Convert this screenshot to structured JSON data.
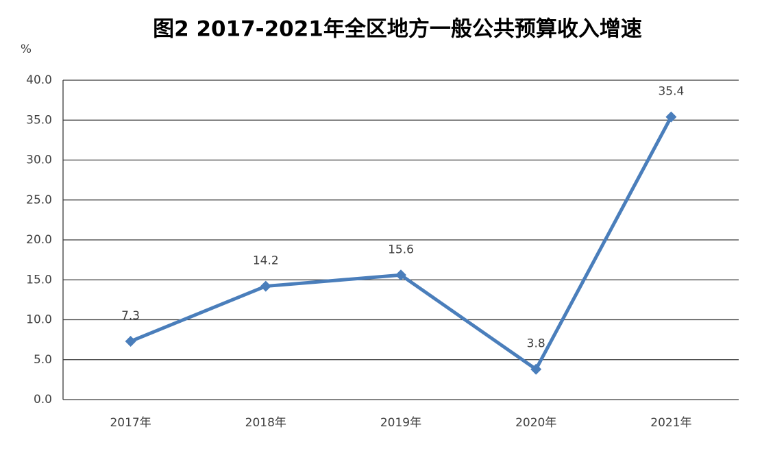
{
  "chart_data": {
    "type": "line",
    "title": "图2  2017-2021年全区地方一般公共预算收入增速",
    "ylabel": "%",
    "categories": [
      "2017年",
      "2018年",
      "2019年",
      "2020年",
      "2021年"
    ],
    "series": [
      {
        "name": "增速",
        "color": "#4a7ebb",
        "values": [
          7.3,
          14.2,
          15.6,
          3.8,
          35.4
        ]
      }
    ],
    "ylim": [
      0,
      40
    ],
    "yticks": [
      {
        "value": 0,
        "label": "0.0"
      },
      {
        "value": 5,
        "label": "5.0"
      },
      {
        "value": 10,
        "label": "10.0"
      },
      {
        "value": 15,
        "label": "15.0"
      },
      {
        "value": 20,
        "label": "20.0"
      },
      {
        "value": 25,
        "label": "25.0"
      },
      {
        "value": 30,
        "label": "30.0"
      },
      {
        "value": 35,
        "label": "35.0"
      },
      {
        "value": 40,
        "label": "40.0"
      }
    ],
    "grid": true,
    "data_labels": true
  }
}
